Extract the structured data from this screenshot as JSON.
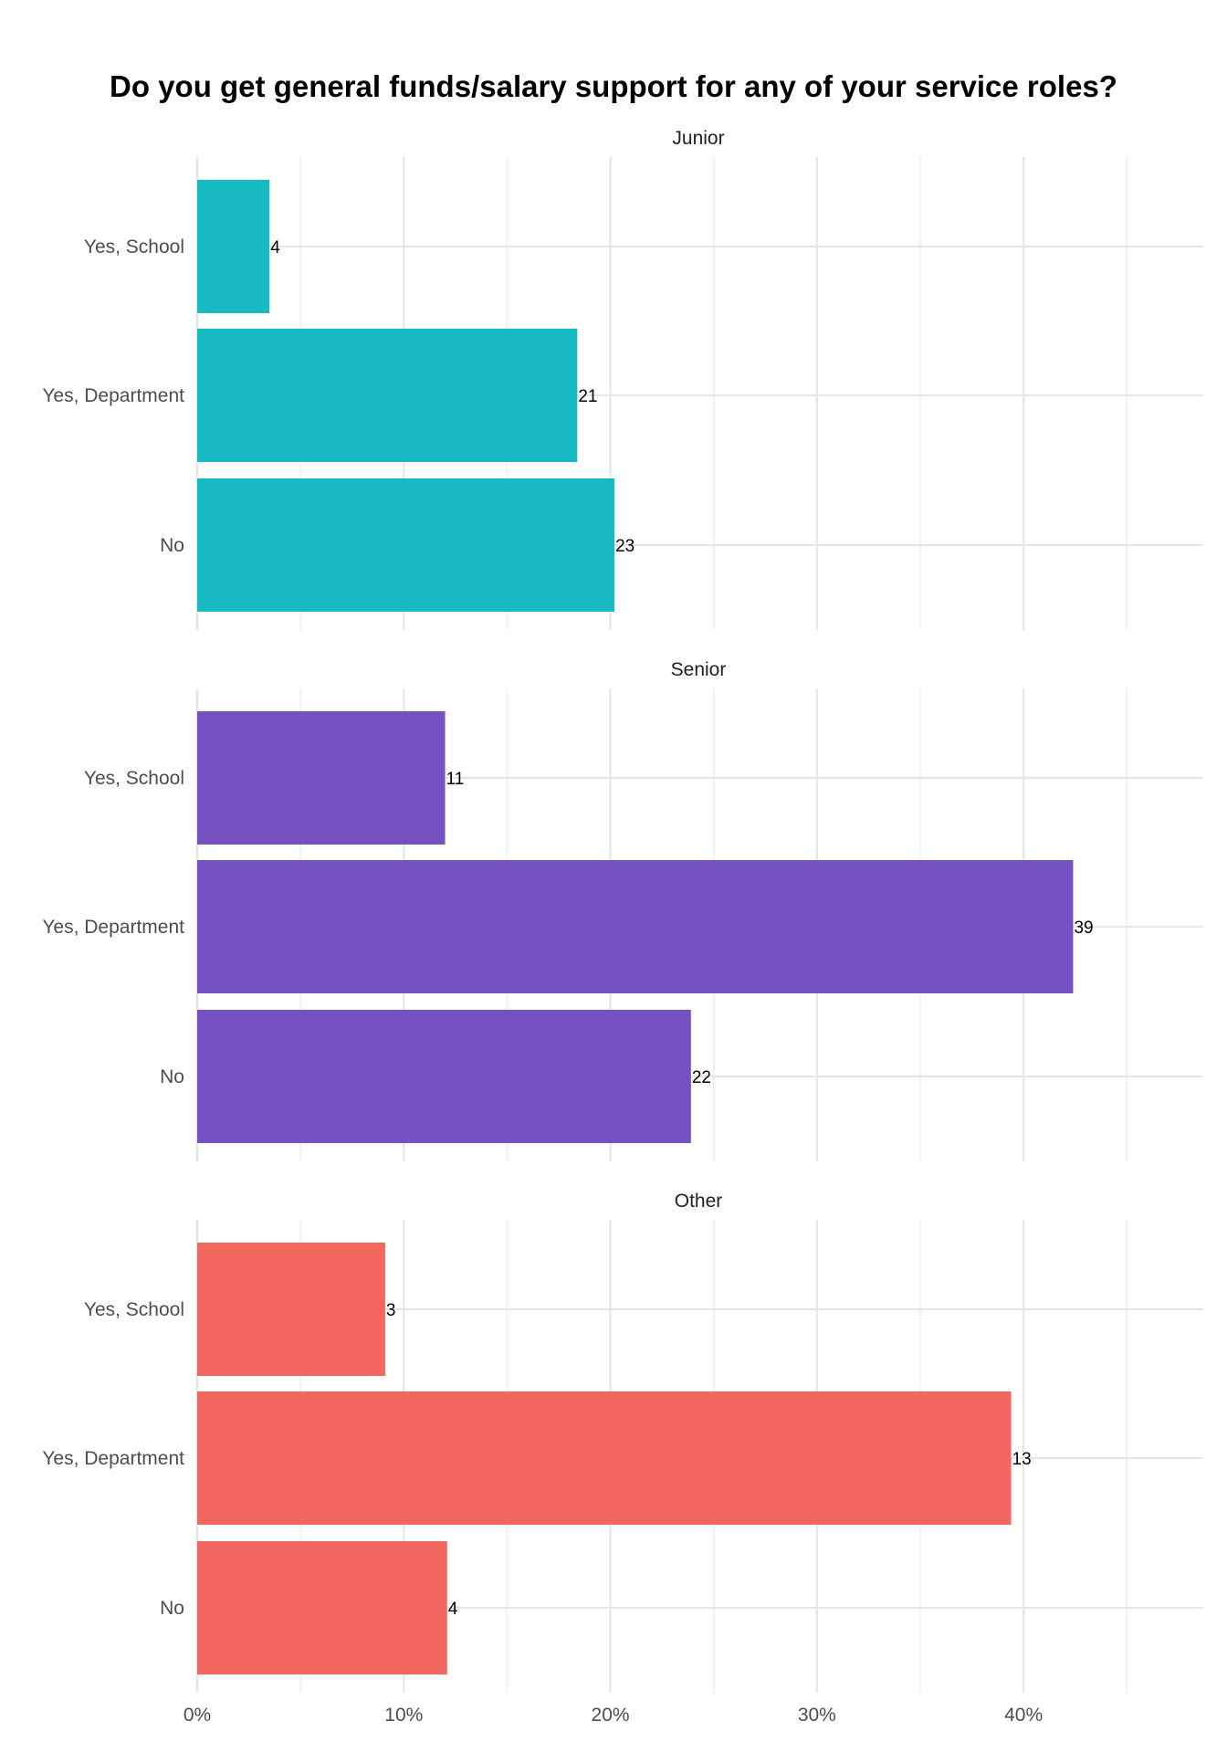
{
  "chart_data": {
    "type": "bar",
    "orientation": "horizontal",
    "title": "Do you get general funds/salary support for any of your service roles?",
    "xlabel": "",
    "ylabel": "",
    "x_tick_labels": [
      "0%",
      "10%",
      "20%",
      "30%",
      "40%"
    ],
    "xlim": [
      0,
      0.487
    ],
    "grid": true,
    "legend": "none",
    "categories": [
      "Yes, School",
      "Yes, Department",
      "No"
    ],
    "panels": [
      {
        "name": "Junior",
        "color": "#17b9c2",
        "counts": [
          4,
          21,
          23
        ],
        "percent": [
          0.035,
          0.184,
          0.202
        ]
      },
      {
        "name": "Senior",
        "color": "#7551c1",
        "counts": [
          11,
          39,
          22
        ],
        "percent": [
          0.12,
          0.424,
          0.239
        ]
      },
      {
        "name": "Other",
        "color": "#f26861",
        "counts": [
          3,
          13,
          4
        ],
        "percent": [
          0.091,
          0.394,
          0.121
        ]
      }
    ]
  }
}
